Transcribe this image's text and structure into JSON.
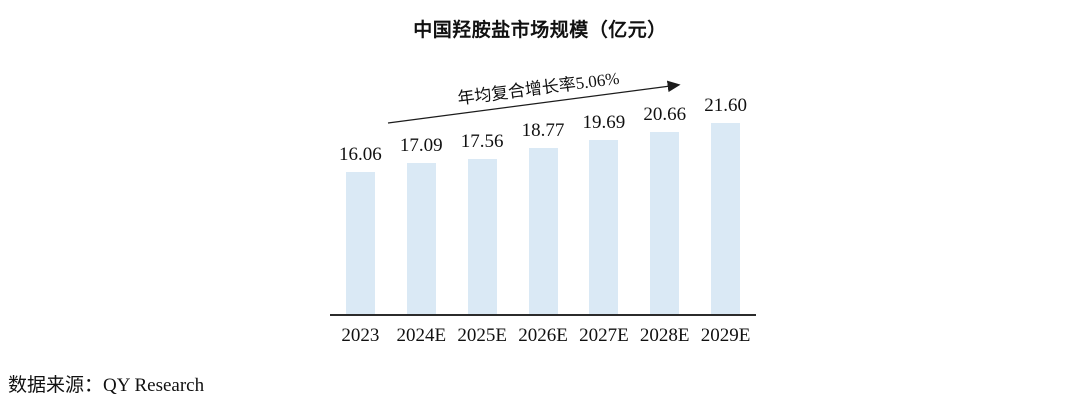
{
  "chart_data": {
    "type": "bar",
    "title": "中国羟胺盐市场规模（亿元）",
    "categories": [
      "2023",
      "2024E",
      "2025E",
      "2026E",
      "2027E",
      "2028E",
      "2029E"
    ],
    "values": [
      16.06,
      17.09,
      17.56,
      18.77,
      19.69,
      20.66,
      21.6
    ],
    "value_labels": [
      "16.06",
      "17.09",
      "17.56",
      "18.77",
      "19.69",
      "20.66",
      "21.60"
    ],
    "annotation": "年均复合增长率5.06%",
    "bar_color": "#DAE9F5",
    "axis_color": "#2b2b2b",
    "text_color": "#111111",
    "grid": false,
    "legend": "none",
    "value_labels_position": "above-bars"
  },
  "source": {
    "label": "数据来源：QY Research"
  }
}
